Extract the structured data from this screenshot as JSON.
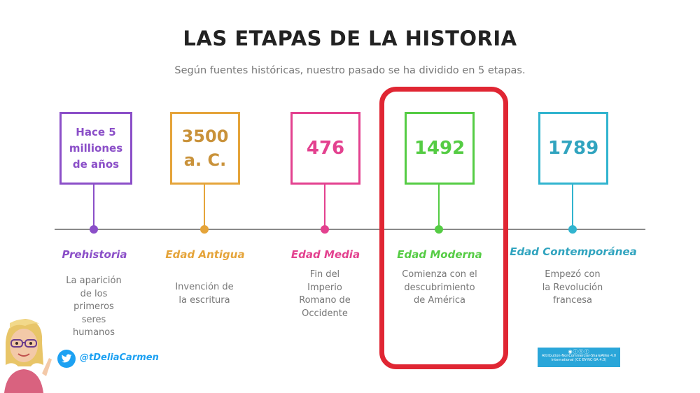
{
  "title": "LAS ETAPAS DE LA HISTORIA",
  "subtitle": "Según fuentes históricas, nuestro pasado se ha dividido en 5 etapas.",
  "stages": [
    {
      "box_text": "Hace 5 milliones de años",
      "name": "Prehistoria",
      "description": "La aparición de los primeros seres humanos",
      "color": "#8b4fc8"
    },
    {
      "box_text": "3500 a. C.",
      "name": "Edad Antigua",
      "description": "Invención de la escritura",
      "color": "#e5a43a"
    },
    {
      "box_text": "476",
      "name": "Edad Media",
      "description": "Fin del Imperio Romano de Occidente",
      "color": "#e3418f"
    },
    {
      "box_text": "1492",
      "name": "Edad Moderna",
      "description": "Comienza con el descubrimiento de América",
      "color": "#55cc44"
    },
    {
      "box_text": "1789",
      "name": "Edad Contemporánea",
      "description": "Empezó con la Revolución francesa",
      "color": "#31b4cf"
    }
  ],
  "highlight_color": "#e02633",
  "twitter_handle": "@tDeliaCarmen",
  "license_text": "Attribution-NonCommercial-ShareAlike 4.0 International (CC BY-NC-SA 4.0)",
  "icons": [
    "twitter-icon",
    "avatar-illustration",
    "cc-license-icons"
  ]
}
